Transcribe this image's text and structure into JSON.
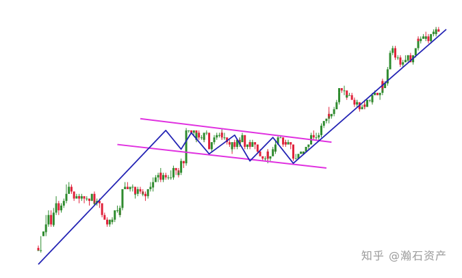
{
  "watermark": "知乎 @瀚石资产",
  "colors": {
    "up": "#2e8b2e",
    "down": "#e0203a",
    "trend": "#2323b4",
    "channel": "#e030e0",
    "background": "#ffffff"
  },
  "chart_data": {
    "type": "candlestick",
    "title": "",
    "xlabel": "",
    "ylabel": "",
    "axes_visible": false,
    "grid": false,
    "xlim": [
      0,
      160
    ],
    "ylim": [
      0,
      100
    ],
    "zigzag": [
      [
        0,
        0
      ],
      [
        50,
        57
      ],
      [
        56,
        49
      ],
      [
        60,
        56
      ],
      [
        67,
        47
      ],
      [
        77,
        55
      ],
      [
        83,
        44
      ],
      [
        92,
        54
      ],
      [
        100,
        43
      ],
      [
        160,
        100
      ]
    ],
    "channel_upper": [
      [
        40,
        62
      ],
      [
        115,
        52
      ]
    ],
    "channel_lower": [
      [
        31,
        51
      ],
      [
        113,
        41
      ]
    ],
    "candles": [
      [
        0,
        6,
        6,
        7,
        6
      ],
      [
        0,
        7,
        6,
        8,
        6
      ],
      [
        1,
        6,
        6,
        12,
        5
      ],
      [
        2,
        12,
        14,
        14,
        12
      ],
      [
        3,
        14,
        14,
        16,
        12
      ],
      [
        3,
        14,
        17,
        21,
        13
      ],
      [
        4,
        17,
        21,
        23,
        16
      ],
      [
        5,
        21,
        17,
        23,
        16
      ],
      [
        6,
        17,
        17,
        18,
        16
      ],
      [
        6,
        17,
        22,
        24,
        16
      ],
      [
        7,
        22,
        26,
        29,
        21
      ],
      [
        8,
        26,
        23,
        27,
        21
      ],
      [
        9,
        23,
        24,
        26,
        22
      ],
      [
        9,
        24,
        25,
        26,
        24
      ],
      [
        10,
        25,
        27,
        28,
        24
      ],
      [
        11,
        27,
        30,
        34,
        26
      ],
      [
        12,
        30,
        32,
        33,
        30
      ],
      [
        12,
        32,
        33,
        35,
        31
      ],
      [
        13,
        33,
        31,
        34,
        30
      ],
      [
        14,
        31,
        28,
        31,
        27
      ],
      [
        15,
        28,
        29,
        30,
        28
      ],
      [
        16,
        29,
        29,
        30,
        28
      ],
      [
        16,
        29,
        28,
        29,
        26
      ],
      [
        17,
        28,
        29,
        30,
        27
      ],
      [
        18,
        29,
        28,
        29,
        26
      ],
      [
        19,
        28,
        28,
        29,
        27
      ],
      [
        20,
        28,
        27,
        27,
        25
      ],
      [
        21,
        27,
        30,
        30,
        27
      ],
      [
        22,
        30,
        26,
        31,
        25
      ],
      [
        22,
        26,
        26,
        27,
        25
      ],
      [
        23,
        26,
        27,
        28,
        25
      ],
      [
        24,
        27,
        26,
        28,
        24
      ],
      [
        25,
        26,
        25,
        26,
        25
      ],
      [
        25,
        25,
        21,
        26,
        20
      ],
      [
        26,
        21,
        19,
        22,
        19
      ],
      [
        27,
        19,
        17,
        20,
        16
      ],
      [
        28,
        17,
        19,
        19,
        16
      ],
      [
        29,
        19,
        18,
        20,
        17
      ],
      [
        29,
        18,
        19,
        20,
        17
      ],
      [
        30,
        19,
        23,
        23,
        18
      ],
      [
        31,
        23,
        23,
        25,
        22
      ],
      [
        32,
        23,
        21,
        24,
        21
      ],
      [
        32,
        21,
        24,
        25,
        20
      ],
      [
        33,
        24,
        32,
        32,
        23
      ],
      [
        34,
        32,
        33,
        35,
        32
      ],
      [
        35,
        33,
        32,
        35,
        32
      ],
      [
        36,
        32,
        33,
        33,
        31
      ],
      [
        37,
        33,
        33,
        34,
        31
      ],
      [
        38,
        33,
        30,
        33,
        29
      ],
      [
        38,
        30,
        30,
        30,
        28
      ],
      [
        39,
        30,
        32,
        33,
        29
      ],
      [
        40,
        32,
        31,
        33,
        30
      ],
      [
        41,
        31,
        30,
        32,
        30
      ],
      [
        41,
        30,
        30,
        31,
        29
      ],
      [
        42,
        30,
        29,
        31,
        27
      ],
      [
        43,
        29,
        32,
        32,
        28
      ],
      [
        44,
        32,
        33,
        35,
        31
      ],
      [
        45,
        33,
        33,
        34,
        31
      ],
      [
        45,
        33,
        35,
        37,
        33
      ],
      [
        46,
        35,
        37,
        38,
        35
      ],
      [
        47,
        37,
        38,
        39,
        35
      ],
      [
        48,
        38,
        39,
        41,
        37
      ],
      [
        48,
        39,
        36,
        39,
        35
      ],
      [
        49,
        36,
        38,
        39,
        35
      ],
      [
        50,
        38,
        37,
        39,
        36
      ],
      [
        51,
        37,
        37,
        38,
        36
      ],
      [
        52,
        37,
        37,
        40,
        36
      ],
      [
        53,
        37,
        41,
        42,
        36
      ],
      [
        54,
        41,
        40,
        41,
        38
      ],
      [
        55,
        40,
        38,
        41,
        37
      ],
      [
        55,
        38,
        39,
        40,
        38
      ],
      [
        56,
        39,
        44,
        45,
        38
      ],
      [
        57,
        44,
        43,
        44,
        41
      ],
      [
        58,
        43,
        53,
        54,
        42
      ],
      [
        58,
        53,
        57,
        58,
        52
      ],
      [
        59,
        57,
        57,
        57,
        56
      ],
      [
        60,
        57,
        56,
        57,
        56
      ],
      [
        61,
        56,
        57,
        57,
        55
      ],
      [
        62,
        57,
        53,
        57,
        52
      ],
      [
        62,
        53,
        56,
        56,
        52
      ],
      [
        63,
        56,
        54,
        57,
        53
      ],
      [
        64,
        54,
        54,
        55,
        53
      ],
      [
        65,
        54,
        53,
        54,
        52
      ],
      [
        65,
        53,
        56,
        56,
        52
      ],
      [
        66,
        56,
        56,
        57,
        55
      ],
      [
        67,
        56,
        49,
        56,
        49
      ],
      [
        68,
        49,
        52,
        52,
        48
      ],
      [
        69,
        52,
        53,
        55,
        51
      ],
      [
        69,
        53,
        54,
        55,
        53
      ],
      [
        70,
        54,
        55,
        56,
        53
      ],
      [
        71,
        55,
        55,
        56,
        54
      ],
      [
        72,
        55,
        56,
        58,
        53
      ],
      [
        72,
        56,
        54,
        57,
        53
      ],
      [
        73,
        54,
        54,
        56,
        53
      ],
      [
        74,
        54,
        52,
        54,
        51
      ],
      [
        75,
        52,
        51,
        53,
        50
      ],
      [
        76,
        51,
        49,
        51,
        47
      ],
      [
        76,
        49,
        52,
        52,
        48
      ],
      [
        77,
        52,
        50,
        53,
        49
      ],
      [
        78,
        50,
        53,
        53,
        49
      ],
      [
        79,
        53,
        51,
        54,
        50
      ],
      [
        79,
        51,
        52,
        54,
        50
      ],
      [
        80,
        52,
        55,
        56,
        52
      ],
      [
        81,
        55,
        50,
        55,
        49
      ],
      [
        82,
        50,
        51,
        51,
        49
      ],
      [
        83,
        51,
        52,
        53,
        51
      ],
      [
        83,
        52,
        50,
        52,
        49
      ],
      [
        84,
        50,
        52,
        53,
        50
      ],
      [
        85,
        52,
        51,
        52,
        49
      ],
      [
        86,
        51,
        49,
        51,
        48
      ],
      [
        86,
        49,
        48,
        49,
        47
      ],
      [
        87,
        48,
        46,
        49,
        46
      ],
      [
        88,
        46,
        45,
        46,
        44
      ],
      [
        89,
        45,
        45,
        46,
        44
      ],
      [
        90,
        45,
        48,
        49,
        43
      ],
      [
        90,
        48,
        45,
        49,
        44
      ],
      [
        91,
        45,
        46,
        46,
        44
      ],
      [
        92,
        46,
        49,
        50,
        46
      ],
      [
        93,
        49,
        48,
        49,
        48
      ],
      [
        93,
        48,
        51,
        53,
        47
      ],
      [
        94,
        51,
        54,
        55,
        51
      ],
      [
        95,
        54,
        54,
        55,
        54
      ],
      [
        96,
        54,
        51,
        54,
        50
      ],
      [
        97,
        51,
        52,
        53,
        51
      ],
      [
        97,
        52,
        51,
        53,
        50
      ],
      [
        98,
        51,
        52,
        53,
        51
      ],
      [
        99,
        52,
        51,
        52,
        49
      ],
      [
        100,
        51,
        49,
        51,
        48
      ],
      [
        100,
        49,
        45,
        49,
        44
      ],
      [
        101,
        45,
        45,
        47,
        45
      ],
      [
        102,
        45,
        47,
        47,
        45
      ],
      [
        103,
        47,
        48,
        48,
        47
      ],
      [
        104,
        48,
        47,
        48,
        47
      ],
      [
        104,
        47,
        48,
        48,
        47
      ],
      [
        105,
        48,
        50,
        50,
        48
      ],
      [
        106,
        50,
        51,
        51,
        49
      ],
      [
        107,
        51,
        52,
        52,
        51
      ],
      [
        107,
        52,
        55,
        56,
        52
      ],
      [
        108,
        55,
        54,
        57,
        53
      ],
      [
        109,
        54,
        54,
        56,
        53
      ],
      [
        110,
        54,
        55,
        56,
        53
      ],
      [
        111,
        55,
        56,
        56,
        54
      ],
      [
        111,
        56,
        59,
        60,
        55
      ],
      [
        112,
        59,
        61,
        61,
        58
      ],
      [
        113,
        61,
        62,
        62,
        60
      ],
      [
        114,
        62,
        64,
        65,
        60
      ],
      [
        114,
        64,
        63,
        67,
        62
      ],
      [
        115,
        63,
        64,
        64,
        62
      ],
      [
        116,
        64,
        66,
        67,
        63
      ],
      [
        117,
        66,
        69,
        70,
        66
      ],
      [
        118,
        69,
        73,
        73,
        68
      ],
      [
        118,
        73,
        75,
        75,
        72
      ],
      [
        119,
        75,
        74,
        75,
        73
      ],
      [
        120,
        74,
        74,
        76,
        72
      ],
      [
        121,
        74,
        71,
        74,
        70
      ],
      [
        121,
        71,
        72,
        72,
        71
      ],
      [
        122,
        72,
        72,
        73,
        72
      ],
      [
        123,
        72,
        70,
        73,
        70
      ],
      [
        124,
        70,
        68,
        71,
        67
      ],
      [
        125,
        68,
        69,
        70,
        67
      ],
      [
        125,
        69,
        69,
        70,
        69
      ],
      [
        126,
        69,
        66,
        69,
        65
      ],
      [
        127,
        66,
        67,
        68,
        67
      ],
      [
        128,
        67,
        68,
        69,
        66
      ],
      [
        128,
        68,
        67,
        70,
        66
      ],
      [
        129,
        67,
        70,
        70,
        67
      ],
      [
        130,
        70,
        70,
        70,
        69
      ],
      [
        131,
        70,
        69,
        70,
        68
      ],
      [
        131,
        69,
        72,
        73,
        68
      ],
      [
        132,
        72,
        73,
        74,
        72
      ],
      [
        133,
        73,
        72,
        73,
        72
      ],
      [
        134,
        72,
        73,
        73,
        70
      ],
      [
        135,
        73,
        78,
        78,
        72
      ],
      [
        135,
        78,
        75,
        79,
        74
      ],
      [
        136,
        75,
        77,
        78,
        75
      ],
      [
        137,
        77,
        83,
        84,
        76
      ],
      [
        138,
        83,
        85,
        86,
        83
      ],
      [
        138,
        85,
        90,
        91,
        84
      ],
      [
        139,
        90,
        92,
        93,
        89
      ],
      [
        140,
        92,
        88,
        93,
        87
      ],
      [
        141,
        88,
        88,
        89,
        87
      ],
      [
        142,
        88,
        88,
        88,
        86
      ],
      [
        142,
        88,
        85,
        89,
        84
      ],
      [
        143,
        85,
        86,
        87,
        84
      ],
      [
        144,
        86,
        87,
        89,
        86
      ],
      [
        145,
        87,
        87,
        89,
        87
      ],
      [
        145,
        87,
        89,
        89,
        86
      ],
      [
        146,
        89,
        86,
        90,
        86
      ],
      [
        147,
        86,
        89,
        89,
        85
      ],
      [
        148,
        89,
        92,
        92,
        88
      ],
      [
        149,
        92,
        96,
        97,
        91
      ],
      [
        149,
        96,
        95,
        97,
        95
      ],
      [
        150,
        95,
        96,
        97,
        94
      ],
      [
        151,
        96,
        97,
        98,
        96
      ],
      [
        152,
        97,
        96,
        99,
        96
      ],
      [
        152,
        96,
        97,
        97,
        95
      ],
      [
        153,
        97,
        95,
        98,
        94
      ],
      [
        154,
        95,
        98,
        98,
        94
      ],
      [
        155,
        98,
        99,
        100,
        97
      ],
      [
        156,
        99,
        98,
        101,
        98
      ],
      [
        156,
        98,
        100,
        101,
        97
      ],
      [
        157,
        100,
        99,
        101,
        99
      ]
    ]
  }
}
